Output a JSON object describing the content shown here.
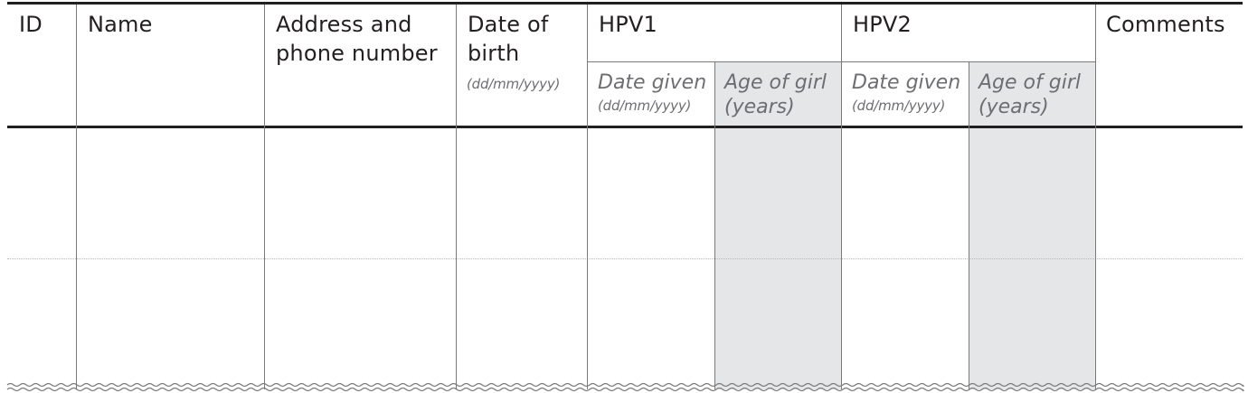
{
  "columns": {
    "id": "ID",
    "name": "Name",
    "address_line1": "Address and",
    "address_line2": "phone number",
    "dob_line1": "Date of",
    "dob_line2": "birth",
    "dob_format": "(dd/mm/yyyy)",
    "hpv1": {
      "title": "HPV1",
      "date_given": "Date given",
      "date_format": "(dd/mm/yyyy)",
      "age_line1": "Age of girl",
      "age_line2": "(years)"
    },
    "hpv2": {
      "title": "HPV2",
      "date_given": "Date given",
      "date_format": "(dd/mm/yyyy)",
      "age_line1": "Age of girl",
      "age_line2": "(years)"
    },
    "comments": "Comments"
  },
  "rows": [
    {
      "id": "",
      "name": "",
      "address": "",
      "dob": "",
      "hpv1_date": "",
      "hpv1_age": "",
      "hpv2_date": "",
      "hpv2_age": "",
      "comments": ""
    },
    {
      "id": "",
      "name": "",
      "address": "",
      "dob": "",
      "hpv1_date": "",
      "hpv1_age": "",
      "hpv2_date": "",
      "hpv2_age": "",
      "comments": ""
    }
  ],
  "colors": {
    "rule": "#231f20",
    "grid": "#7a7a7a",
    "shade": "#e5e6e8",
    "subtext": "#6d6e71"
  }
}
